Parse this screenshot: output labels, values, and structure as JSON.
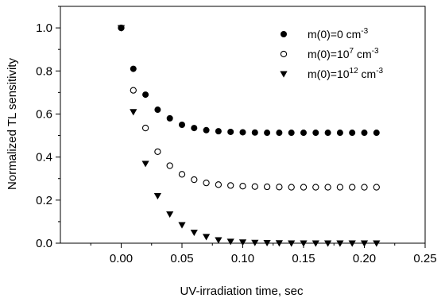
{
  "chart_data": {
    "type": "scatter",
    "title": "",
    "xlabel": "UV-irradiation time, sec",
    "ylabel": "Normalized TL sensitivity",
    "xlim": [
      -0.05,
      0.25
    ],
    "ylim": [
      0.0,
      1.1
    ],
    "xticks": [
      0.0,
      0.05,
      0.1,
      0.15,
      0.2,
      0.25
    ],
    "xtick_labels": [
      "0.00",
      "0.05",
      "0.10",
      "0.15",
      "0.20",
      "0.25"
    ],
    "yticks": [
      0.0,
      0.2,
      0.4,
      0.6,
      0.8,
      1.0
    ],
    "ytick_labels": [
      "0.0",
      "0.2",
      "0.4",
      "0.6",
      "0.8",
      "1.0"
    ],
    "grid": false,
    "legend_position": "top-right",
    "series": [
      {
        "name": "m(0)=0 cm-3",
        "legend": {
          "base": "m(0)=0 cm",
          "sup": "-3"
        },
        "marker": "filled-circle",
        "color": "#000000",
        "x": [
          0.0,
          0.01,
          0.02,
          0.03,
          0.04,
          0.05,
          0.06,
          0.07,
          0.08,
          0.09,
          0.1,
          0.11,
          0.12,
          0.13,
          0.14,
          0.15,
          0.16,
          0.17,
          0.18,
          0.19,
          0.2,
          0.21
        ],
        "y": [
          1.0,
          0.81,
          0.69,
          0.62,
          0.58,
          0.55,
          0.535,
          0.525,
          0.52,
          0.517,
          0.515,
          0.514,
          0.513,
          0.513,
          0.513,
          0.513,
          0.513,
          0.513,
          0.513,
          0.513,
          0.513,
          0.513
        ]
      },
      {
        "name": "m(0)=10^7 cm-3",
        "legend": {
          "base": "m(0)=10",
          "sup1": "7",
          "mid": " cm",
          "sup2": "-3"
        },
        "marker": "open-circle",
        "color": "#000000",
        "x": [
          0.0,
          0.01,
          0.02,
          0.03,
          0.04,
          0.05,
          0.06,
          0.07,
          0.08,
          0.09,
          0.1,
          0.11,
          0.12,
          0.13,
          0.14,
          0.15,
          0.16,
          0.17,
          0.18,
          0.19,
          0.2,
          0.21
        ],
        "y": [
          1.0,
          0.71,
          0.535,
          0.425,
          0.36,
          0.32,
          0.295,
          0.28,
          0.272,
          0.268,
          0.265,
          0.263,
          0.262,
          0.261,
          0.26,
          0.26,
          0.26,
          0.26,
          0.26,
          0.26,
          0.26,
          0.26
        ]
      },
      {
        "name": "m(0)=10^12 cm-3",
        "legend": {
          "base": "m(0)=10",
          "sup1": "12",
          "mid": " cm",
          "sup2": "-3"
        },
        "marker": "filled-down-triangle",
        "color": "#000000",
        "x": [
          0.0,
          0.01,
          0.02,
          0.03,
          0.04,
          0.05,
          0.06,
          0.07,
          0.08,
          0.09,
          0.1,
          0.11,
          0.12,
          0.13,
          0.14,
          0.15,
          0.16,
          0.17,
          0.18,
          0.19,
          0.2,
          0.21
        ],
        "y": [
          1.0,
          0.61,
          0.37,
          0.22,
          0.135,
          0.085,
          0.05,
          0.03,
          0.015,
          0.008,
          0.005,
          0.003,
          0.002,
          0.001,
          0.0,
          0.0,
          0.0,
          0.0,
          0.0,
          0.0,
          0.0,
          0.0
        ]
      }
    ]
  }
}
